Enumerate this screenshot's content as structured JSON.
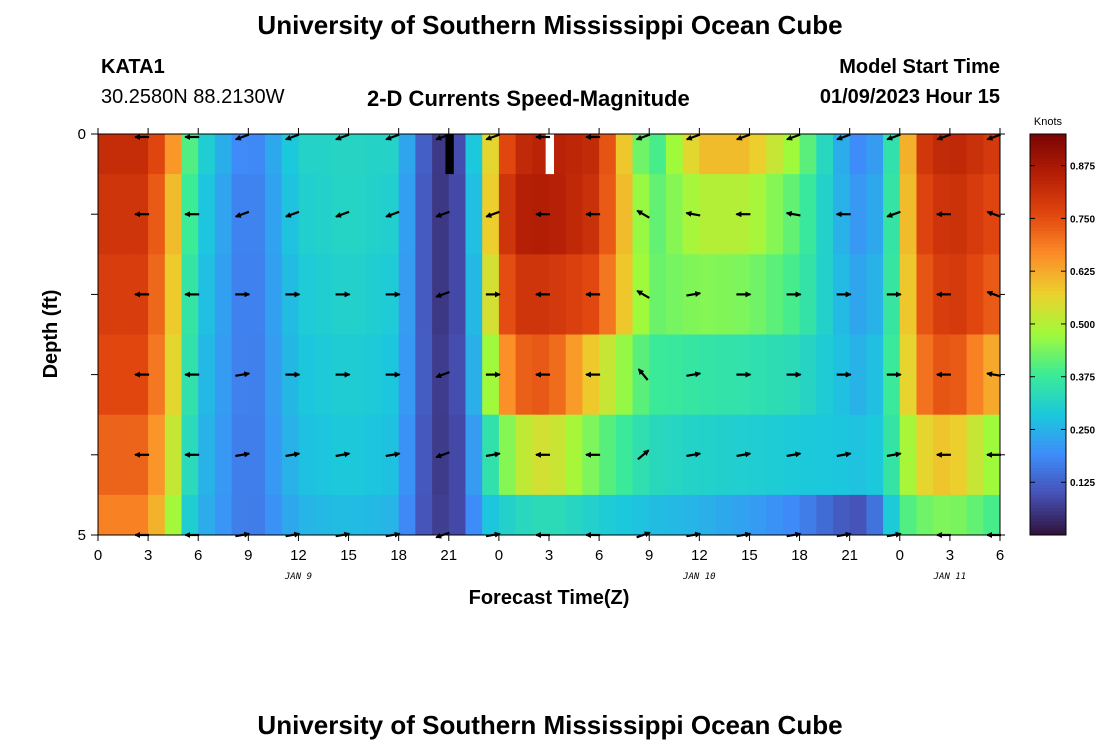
{
  "page": {
    "title_top": "University of Southern Mississippi Ocean Cube",
    "title_bottom": "University of Southern Mississippi Ocean Cube",
    "station": "KATA1",
    "coords": "30.2580N  88.2130W",
    "subtitle": "2-D Currents Speed-Magnitude",
    "model_label": "Model Start Time",
    "model_time": "01/09/2023 Hour 15"
  },
  "chart_data": {
    "type": "heatmap",
    "title": "2-D Currents Speed-Magnitude",
    "xlabel": "Forecast Time(Z)",
    "ylabel": "Depth (ft)",
    "x_tick_labels": [
      "0",
      "3",
      "6",
      "9",
      "12",
      "15",
      "18",
      "21",
      "0",
      "3",
      "6",
      "9",
      "12",
      "15",
      "18",
      "21",
      "0",
      "3",
      "6"
    ],
    "x_hours": [
      0,
      3,
      6,
      9,
      12,
      15,
      18,
      21,
      24,
      27,
      30,
      33,
      36,
      39,
      42,
      45,
      48,
      51,
      54
    ],
    "xlim": [
      0,
      54
    ],
    "date_labels": [
      {
        "label": "JAN 9",
        "hour": 12
      },
      {
        "label": "JAN 10",
        "hour": 36
      },
      {
        "label": "JAN 11",
        "hour": 51
      }
    ],
    "y_tick_labels": [
      "0",
      "5"
    ],
    "ylim": [
      0,
      5
    ],
    "depth_levels": [
      0,
      1,
      2,
      3,
      4,
      5
    ],
    "colorbar": {
      "unit": "Knots",
      "min": 0,
      "max": 0.95,
      "tick_labels": [
        "0.875",
        "0.750",
        "0.625",
        "0.500",
        "0.375",
        "0.250",
        "0.125"
      ],
      "tick_values": [
        0.875,
        0.75,
        0.625,
        0.5,
        0.375,
        0.25,
        0.125
      ]
    },
    "speed_series": [
      {
        "name": "0 ft",
        "hours": [
          0,
          3,
          4.5,
          5.5,
          6.5,
          9,
          12,
          15,
          18,
          19,
          21,
          22,
          23,
          24,
          25,
          27,
          30,
          33,
          36,
          39,
          42,
          45,
          46,
          47,
          48,
          49,
          51,
          54
        ],
        "values": [
          0.82,
          0.82,
          0.65,
          0.4,
          0.3,
          0.16,
          0.31,
          0.32,
          0.31,
          0.15,
          0.03,
          0.15,
          0.42,
          0.7,
          0.82,
          0.85,
          0.82,
          0.35,
          0.6,
          0.6,
          0.45,
          0.2,
          0.18,
          0.25,
          0.45,
          0.78,
          0.84,
          0.78
        ]
      },
      {
        "name": "1 ft",
        "hours": [
          0,
          3,
          4.5,
          5.5,
          6.5,
          9,
          12,
          15,
          18,
          19,
          21,
          22,
          23,
          24,
          25,
          27,
          30,
          33,
          36,
          39,
          42,
          45,
          46,
          47,
          48,
          49,
          51,
          54
        ],
        "values": [
          0.8,
          0.8,
          0.6,
          0.38,
          0.28,
          0.15,
          0.3,
          0.32,
          0.3,
          0.14,
          0.03,
          0.14,
          0.4,
          0.75,
          0.85,
          0.86,
          0.8,
          0.4,
          0.5,
          0.5,
          0.4,
          0.22,
          0.2,
          0.27,
          0.45,
          0.75,
          0.82,
          0.75
        ]
      },
      {
        "name": "2 ft",
        "hours": [
          0,
          3,
          4.5,
          5.5,
          6.5,
          9,
          12,
          15,
          18,
          19,
          21,
          22,
          23,
          24,
          25,
          27,
          30,
          33,
          36,
          39,
          42,
          45,
          46,
          47,
          48,
          49,
          51,
          54
        ],
        "values": [
          0.78,
          0.78,
          0.58,
          0.36,
          0.27,
          0.15,
          0.29,
          0.31,
          0.29,
          0.14,
          0.03,
          0.14,
          0.38,
          0.7,
          0.8,
          0.8,
          0.75,
          0.42,
          0.45,
          0.44,
          0.38,
          0.24,
          0.22,
          0.28,
          0.45,
          0.72,
          0.8,
          0.72
        ]
      },
      {
        "name": "3 ft",
        "hours": [
          0,
          3,
          4.5,
          5.5,
          6.5,
          9,
          12,
          15,
          18,
          19,
          21,
          22,
          23,
          24,
          25,
          27,
          30,
          33,
          36,
          39,
          42,
          45,
          46,
          47,
          48,
          49,
          51,
          54
        ],
        "values": [
          0.76,
          0.76,
          0.56,
          0.35,
          0.26,
          0.15,
          0.28,
          0.3,
          0.28,
          0.14,
          0.04,
          0.14,
          0.35,
          0.6,
          0.72,
          0.74,
          0.55,
          0.38,
          0.36,
          0.35,
          0.33,
          0.26,
          0.24,
          0.3,
          0.45,
          0.68,
          0.76,
          0.6
        ]
      },
      {
        "name": "4 ft",
        "hours": [
          0,
          3,
          4.5,
          5.5,
          6.5,
          9,
          12,
          15,
          18,
          19,
          21,
          22,
          23,
          24,
          25,
          27,
          30,
          33,
          36,
          39,
          42,
          45,
          46,
          47,
          48,
          49,
          51,
          54
        ],
        "values": [
          0.72,
          0.72,
          0.52,
          0.33,
          0.25,
          0.15,
          0.27,
          0.29,
          0.27,
          0.13,
          0.04,
          0.13,
          0.3,
          0.4,
          0.5,
          0.55,
          0.42,
          0.33,
          0.31,
          0.3,
          0.29,
          0.28,
          0.27,
          0.3,
          0.42,
          0.55,
          0.6,
          0.45
        ]
      },
      {
        "name": "5 ft",
        "hours": [
          0,
          3,
          4.5,
          5.5,
          6.5,
          9,
          12,
          15,
          18,
          19,
          21,
          22,
          23,
          24,
          25,
          27,
          30,
          33,
          36,
          39,
          42,
          45,
          46,
          47,
          48,
          49,
          51,
          54
        ],
        "values": [
          0.68,
          0.68,
          0.48,
          0.3,
          0.24,
          0.15,
          0.25,
          0.27,
          0.25,
          0.12,
          0.05,
          0.12,
          0.26,
          0.3,
          0.32,
          0.34,
          0.3,
          0.27,
          0.25,
          0.22,
          0.18,
          0.1,
          0.1,
          0.2,
          0.38,
          0.42,
          0.45,
          0.38
        ]
      }
    ],
    "missing_cells": [
      {
        "hour": 21,
        "depth": 0
      },
      {
        "hour": 27,
        "depth": 0
      }
    ],
    "vector_hours": [
      3,
      6,
      9,
      12,
      15,
      18,
      21,
      24,
      27,
      30,
      33,
      36,
      39,
      42,
      45,
      48,
      51,
      54
    ],
    "vector_depths": [
      0,
      1,
      2,
      3,
      4,
      5
    ],
    "vector_directions_deg": [
      [
        180,
        180,
        200,
        200,
        200,
        200,
        200,
        200,
        180,
        180,
        200,
        200,
        200,
        200,
        200,
        200,
        200,
        200
      ],
      [
        180,
        180,
        200,
        200,
        200,
        200,
        200,
        200,
        180,
        180,
        150,
        170,
        180,
        170,
        180,
        200,
        180,
        160
      ],
      [
        180,
        180,
        0,
        0,
        0,
        0,
        200,
        0,
        180,
        180,
        150,
        10,
        0,
        0,
        0,
        0,
        180,
        160
      ],
      [
        180,
        180,
        10,
        0,
        0,
        0,
        200,
        0,
        180,
        180,
        130,
        10,
        0,
        0,
        0,
        0,
        180,
        170
      ],
      [
        180,
        180,
        10,
        10,
        10,
        10,
        200,
        10,
        180,
        180,
        40,
        10,
        10,
        10,
        10,
        10,
        180,
        180
      ],
      [
        180,
        180,
        10,
        10,
        10,
        10,
        200,
        10,
        180,
        180,
        20,
        10,
        10,
        10,
        10,
        10,
        180,
        180
      ]
    ]
  }
}
